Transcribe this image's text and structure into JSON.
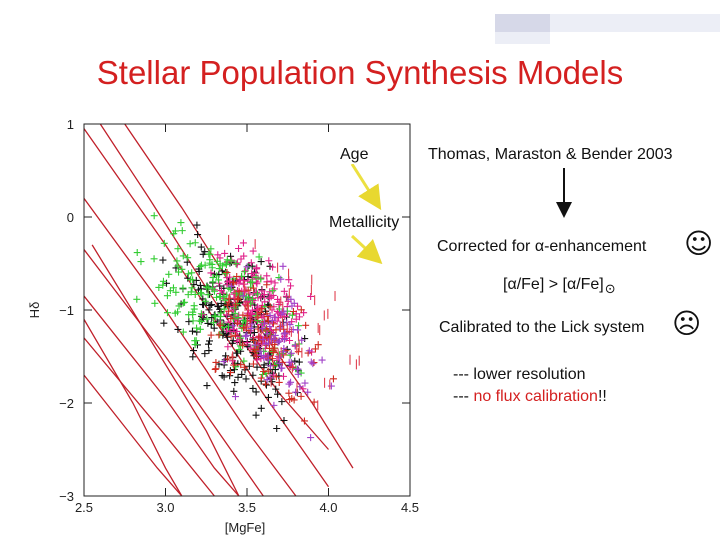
{
  "title": "Stellar Population Synthesis Models",
  "colors": {
    "title": "#d42020",
    "model_grid": "#c0202a",
    "arrow": "#f0e030",
    "accent_red": "#d42020"
  },
  "annotations": {
    "age": "Age",
    "metallicity": "Metallicity",
    "authors": "Thomas, Maraston & Bender 2003",
    "corrected": "Corrected for α-enhancement",
    "alpha_ratio": "[α/Fe] > [α/Fe]",
    "sun_symbol": "⊙",
    "calibrated": "Calibrated to the Lick system",
    "lower_resolution": "--- lower resolution",
    "no_flux_prefix": "--- ",
    "no_flux_red": "no flux calibration",
    "no_flux_suffix": "!!",
    "happy_face": "☺",
    "sad_face": "☹"
  },
  "chart_data": {
    "type": "scatter",
    "xlabel": "[MgFe]",
    "ylabel": "Hδ",
    "xlim": [
      2.5,
      4.5
    ],
    "ylim": [
      -3,
      1
    ],
    "xticks": [
      2.5,
      3.0,
      3.5,
      4.0,
      4.5
    ],
    "xtick_labels": [
      "2.5",
      "3.0",
      "3.5",
      "4.0",
      "4.5"
    ],
    "yticks": [
      1,
      0,
      -1,
      -2,
      -3
    ],
    "ytick_labels": [
      "1",
      "0",
      "−1",
      "−2",
      "−3"
    ],
    "grid": false,
    "model_grid": {
      "age_lines": [
        [
          [
            2.5,
            0.95
          ],
          [
            3.0,
            -0.3
          ],
          [
            3.6,
            -1.9
          ],
          [
            4.0,
            -2.9
          ]
        ],
        [
          [
            2.5,
            0.2
          ],
          [
            3.0,
            -1.0
          ],
          [
            3.5,
            -2.3
          ],
          [
            3.8,
            -3.0
          ]
        ],
        [
          [
            2.5,
            -0.35
          ],
          [
            3.0,
            -1.5
          ],
          [
            3.4,
            -2.5
          ],
          [
            3.6,
            -3.0
          ]
        ],
        [
          [
            2.5,
            -0.85
          ],
          [
            3.0,
            -1.95
          ],
          [
            3.3,
            -2.7
          ],
          [
            3.45,
            -3.0
          ]
        ],
        [
          [
            2.5,
            -1.3
          ],
          [
            3.0,
            -2.35
          ],
          [
            3.3,
            -3.0
          ]
        ],
        [
          [
            2.5,
            -1.7
          ],
          [
            2.95,
            -2.7
          ],
          [
            3.1,
            -3.0
          ]
        ]
      ],
      "metallicity_lines": [
        [
          [
            2.6,
            1.0
          ],
          [
            2.9,
            0.2
          ],
          [
            3.3,
            -0.9
          ],
          [
            3.7,
            -1.9
          ],
          [
            4.0,
            -2.5
          ]
        ],
        [
          [
            2.75,
            1.0
          ],
          [
            3.1,
            0.1
          ],
          [
            3.5,
            -1.0
          ],
          [
            3.9,
            -2.0
          ],
          [
            4.15,
            -2.7
          ]
        ],
        [
          [
            2.55,
            -0.3
          ],
          [
            2.9,
            -1.3
          ],
          [
            3.25,
            -2.3
          ],
          [
            3.45,
            -3.0
          ]
        ],
        [
          [
            2.5,
            -1.1
          ],
          [
            2.8,
            -2.0
          ],
          [
            3.0,
            -2.7
          ],
          [
            3.1,
            -3.0
          ]
        ]
      ]
    },
    "series": [
      {
        "color": "#111111",
        "symbol": "+",
        "center": [
          3.45,
          -1.2
        ],
        "spread": [
          0.32,
          0.62
        ],
        "count": 230
      },
      {
        "color": "#e0208a",
        "symbol": "+",
        "center": [
          3.55,
          -1.0
        ],
        "spread": [
          0.25,
          0.52
        ],
        "count": 200
      },
      {
        "color": "#33cc33",
        "symbol": "+",
        "center": [
          3.35,
          -0.9
        ],
        "spread": [
          0.38,
          0.62
        ],
        "count": 170
      },
      {
        "color": "#d02a20",
        "symbol": "+",
        "center": [
          3.6,
          -1.3
        ],
        "spread": [
          0.3,
          0.55
        ],
        "count": 110
      },
      {
        "color": "#a040c8",
        "symbol": "+",
        "center": [
          3.7,
          -1.4
        ],
        "spread": [
          0.28,
          0.55
        ],
        "count": 80
      },
      {
        "color": "#e04050",
        "symbol": "|",
        "center": [
          3.8,
          -1.2
        ],
        "spread": [
          0.34,
          0.62
        ],
        "count": 45
      }
    ]
  }
}
